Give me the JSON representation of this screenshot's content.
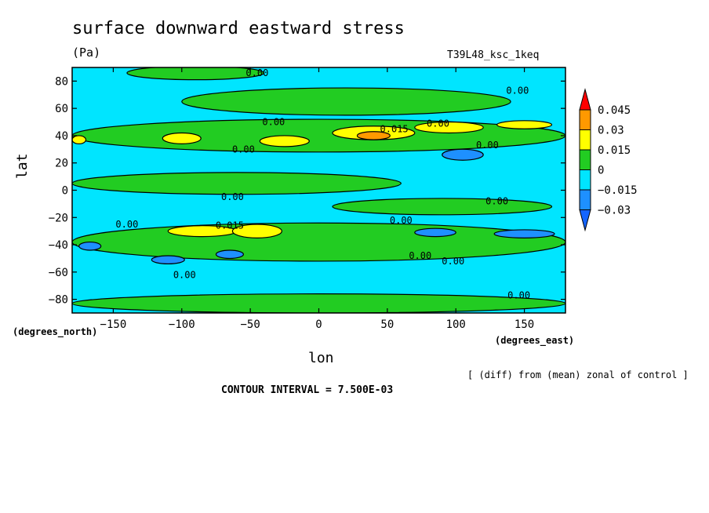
{
  "chart_data": {
    "type": "contour",
    "title": "surface downward eastward stress",
    "units": "(Pa)",
    "run_name": "T39L48_ksc_1keq",
    "xlabel": "lon",
    "ylabel": "lat",
    "x_units_label": "(degrees_east)",
    "y_units_label": "(degrees_north)",
    "xlim": [
      -180,
      180
    ],
    "ylim": [
      -90,
      90
    ],
    "x_ticks": [
      -150,
      -100,
      -50,
      0,
      50,
      100,
      150
    ],
    "x_tick_labels": [
      "−150",
      "−100",
      "−50",
      "0",
      "50",
      "100",
      "150"
    ],
    "y_ticks": [
      80,
      60,
      40,
      20,
      0,
      -20,
      -40,
      -60,
      -80
    ],
    "y_tick_labels": [
      "80",
      "60",
      "40",
      "20",
      "0",
      "−20",
      "−40",
      "−60",
      "−80"
    ],
    "contour_interval_text": "CONTOUR INTERVAL = 7.500E-03",
    "note": "[ (diff) from (mean) zonal of control ]",
    "colorbar": {
      "levels": [
        -0.03,
        -0.015,
        0,
        0.015,
        0.03,
        0.045
      ],
      "labels": [
        "−0.03",
        "−0.015",
        "0",
        "0.015",
        "0.03",
        "0.045"
      ],
      "colors": [
        "#1e90ff",
        "#00e5ff",
        "#22cc22",
        "#ffff00",
        "#ff9900",
        "#ff0000"
      ],
      "below_color": "#1565ff",
      "above_color": "#ff0000"
    },
    "background_band_colors": {
      "negative": "#00e5ff",
      "zero_to_0.015": "#22cc22"
    },
    "contour_labels": [
      {
        "text": "0.00",
        "lon": -45,
        "lat": 86
      },
      {
        "text": "0.00",
        "lon": 145,
        "lat": 73
      },
      {
        "text": "0.00",
        "lon": -33,
        "lat": 50
      },
      {
        "text": "0.015",
        "lon": 55,
        "lat": 45
      },
      {
        "text": "0.00",
        "lon": 87,
        "lat": 49
      },
      {
        "text": "0.00",
        "lon": 123,
        "lat": 33
      },
      {
        "text": "0.00",
        "lon": -55,
        "lat": 30
      },
      {
        "text": "0.00",
        "lon": -63,
        "lat": -5
      },
      {
        "text": "0.00",
        "lon": 130,
        "lat": -8
      },
      {
        "text": "0.00",
        "lon": -140,
        "lat": -25
      },
      {
        "text": "0.015",
        "lon": -65,
        "lat": -26
      },
      {
        "text": "0.00",
        "lon": 60,
        "lat": -22
      },
      {
        "text": "0.00",
        "lon": 74,
        "lat": -48
      },
      {
        "text": "0.00",
        "lon": 98,
        "lat": -52
      },
      {
        "text": "0.00",
        "lon": -98,
        "lat": -62
      },
      {
        "text": "0.00",
        "lon": 146,
        "lat": -77
      }
    ],
    "blobs": [
      {
        "level": "positive_band",
        "lon": 0,
        "lat": 40,
        "dlon": 180,
        "dlat": 12
      },
      {
        "level": "positive_band",
        "lon": 0,
        "lat": -38,
        "dlon": 180,
        "dlat": 14
      },
      {
        "level": "positive_band",
        "lon": 20,
        "lat": 65,
        "dlon": 120,
        "dlat": 10
      },
      {
        "level": "positive_band",
        "lon": -60,
        "lat": 5,
        "dlon": 120,
        "dlat": 8
      },
      {
        "level": "positive_band",
        "lon": 90,
        "lat": -12,
        "dlon": 80,
        "dlat": 6
      },
      {
        "level": "positive_band",
        "lon": 0,
        "lat": -83,
        "dlon": 180,
        "dlat": 7
      },
      {
        "level": "positive_band",
        "lon": -90,
        "lat": 86,
        "dlon": 50,
        "dlat": 5
      },
      {
        "level": "0.015",
        "lon": -100,
        "lat": 38,
        "dlon": 14,
        "dlat": 4
      },
      {
        "level": "0.015",
        "lon": -25,
        "lat": 36,
        "dlon": 18,
        "dlat": 4
      },
      {
        "level": "0.015",
        "lon": 40,
        "lat": 42,
        "dlon": 30,
        "dlat": 5
      },
      {
        "level": "0.015",
        "lon": 95,
        "lat": 46,
        "dlon": 25,
        "dlat": 4
      },
      {
        "level": "0.015",
        "lon": 150,
        "lat": 48,
        "dlon": 20,
        "dlat": 3
      },
      {
        "level": "0.015",
        "lon": -175,
        "lat": 37,
        "dlon": 5,
        "dlat": 3
      },
      {
        "level": "0.015",
        "lon": -85,
        "lat": -30,
        "dlon": 25,
        "dlat": 4
      },
      {
        "level": "0.015",
        "lon": -45,
        "lat": -30,
        "dlon": 18,
        "dlat": 5
      },
      {
        "level": "0.03",
        "lon": 40,
        "lat": 40,
        "dlon": 12,
        "dlat": 3
      },
      {
        "level": "-0.03",
        "lon": 105,
        "lat": 26,
        "dlon": 15,
        "dlat": 4
      },
      {
        "level": "-0.03",
        "lon": -167,
        "lat": -41,
        "dlon": 8,
        "dlat": 3
      },
      {
        "level": "-0.03",
        "lon": -110,
        "lat": -51,
        "dlon": 12,
        "dlat": 3
      },
      {
        "level": "-0.03",
        "lon": -65,
        "lat": -47,
        "dlon": 10,
        "dlat": 3
      },
      {
        "level": "-0.03",
        "lon": 85,
        "lat": -31,
        "dlon": 15,
        "dlat": 3
      },
      {
        "level": "-0.03",
        "lon": 150,
        "lat": -32,
        "dlon": 22,
        "dlat": 3
      }
    ]
  }
}
